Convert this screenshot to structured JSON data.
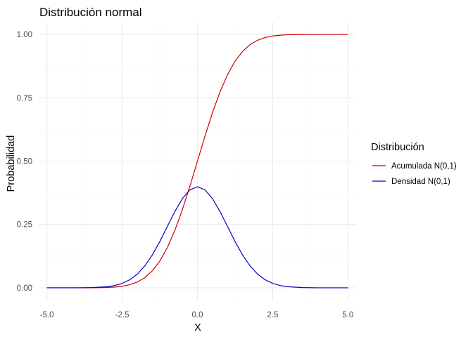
{
  "chart_data": {
    "type": "line",
    "title": "Distribución normal",
    "xlabel": "X",
    "ylabel": "Probabilidad",
    "xlim": [
      -5.25,
      5.25
    ],
    "ylim": [
      -0.05,
      1.05
    ],
    "x_ticks": [
      -5,
      -2.5,
      0,
      2.5,
      5
    ],
    "x_tick_labels": [
      "-5.0",
      "-2.5",
      "0.0",
      "2.5",
      "5.0"
    ],
    "y_ticks": [
      0,
      0.25,
      0.5,
      0.75,
      1
    ],
    "y_tick_labels": [
      "0.00",
      "0.25",
      "0.50",
      "0.75",
      "1.00"
    ],
    "grid": true,
    "legend": {
      "title": "Distribución",
      "position": "right"
    },
    "series": [
      {
        "name": "Acumulada N(0,1)",
        "color": "#cc0000",
        "x": [
          -5,
          -4.5,
          -4,
          -3.5,
          -3,
          -2.75,
          -2.5,
          -2.25,
          -2,
          -1.75,
          -1.5,
          -1.25,
          -1,
          -0.75,
          -0.5,
          -0.25,
          0,
          0.25,
          0.5,
          0.75,
          1,
          1.25,
          1.5,
          1.75,
          2,
          2.25,
          2.5,
          2.75,
          3,
          3.5,
          4,
          4.5,
          5
        ],
        "y": [
          0.0,
          0.0,
          0.0,
          0.0002,
          0.0013,
          0.003,
          0.0062,
          0.0122,
          0.0228,
          0.0401,
          0.0668,
          0.1056,
          0.1587,
          0.2266,
          0.3085,
          0.4013,
          0.5,
          0.5987,
          0.6915,
          0.7734,
          0.8413,
          0.8944,
          0.9332,
          0.9599,
          0.9772,
          0.9878,
          0.9938,
          0.997,
          0.9987,
          0.9998,
          1.0,
          1.0,
          1.0
        ]
      },
      {
        "name": "Densidad N(0,1)",
        "color": "#0000cc",
        "x": [
          -5,
          -4.5,
          -4,
          -3.5,
          -3,
          -2.75,
          -2.5,
          -2.25,
          -2,
          -1.75,
          -1.5,
          -1.25,
          -1,
          -0.75,
          -0.5,
          -0.25,
          0,
          0.25,
          0.5,
          0.75,
          1,
          1.25,
          1.5,
          1.75,
          2,
          2.25,
          2.5,
          2.75,
          3,
          3.5,
          4,
          4.5,
          5
        ],
        "y": [
          0.0,
          0.0,
          0.0001,
          0.0009,
          0.0044,
          0.0091,
          0.0175,
          0.0317,
          0.054,
          0.0863,
          0.1295,
          0.1826,
          0.242,
          0.3011,
          0.3521,
          0.3867,
          0.3989,
          0.3867,
          0.3521,
          0.3011,
          0.242,
          0.1826,
          0.1295,
          0.0863,
          0.054,
          0.0317,
          0.0175,
          0.0091,
          0.0044,
          0.0009,
          0.0001,
          0.0,
          0.0
        ]
      }
    ]
  }
}
